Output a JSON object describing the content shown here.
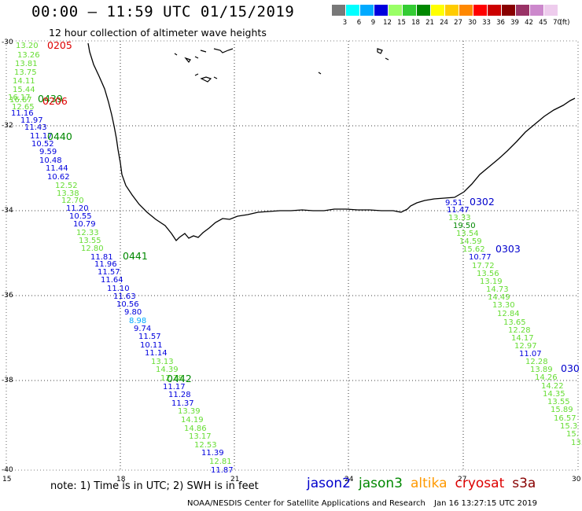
{
  "header": {
    "title": "00:00 – 11:59 UTC 01/15/2019",
    "subtitle": "12 hour collection of altimeter wave heights"
  },
  "color_scale": {
    "unit_label": "(ft)",
    "bins": [
      {
        "label": "3",
        "color": "#787878"
      },
      {
        "label": "6",
        "color": "#00ffff"
      },
      {
        "label": "9",
        "color": "#00aaff"
      },
      {
        "label": "12",
        "color": "#0000dd"
      },
      {
        "label": "15",
        "color": "#99ff66"
      },
      {
        "label": "18",
        "color": "#33cc33"
      },
      {
        "label": "21",
        "color": "#008800"
      },
      {
        "label": "24",
        "color": "#ffff00"
      },
      {
        "label": "27",
        "color": "#ffcc00"
      },
      {
        "label": "30",
        "color": "#ff8800"
      },
      {
        "label": "33",
        "color": "#ff0000"
      },
      {
        "label": "36",
        "color": "#cc0000"
      },
      {
        "label": "39",
        "color": "#880000"
      },
      {
        "label": "42",
        "color": "#993366"
      },
      {
        "label": "45",
        "color": "#cc88cc"
      },
      {
        "label": "70",
        "color": "#eecced"
      }
    ]
  },
  "axes": {
    "lat_labels": [
      "-30",
      "-32",
      "-34",
      "-36",
      "-38",
      "-40"
    ],
    "lon_labels": [
      "15",
      "18",
      "21",
      "24",
      "27",
      "30"
    ]
  },
  "tracks": {
    "A": [
      "13.20",
      "13.26",
      "13.81",
      "13.75",
      "14.11",
      "15.44",
      "16.17",
      "16.67",
      "12.65",
      "11.16",
      "11.97",
      "11.43",
      "11.17",
      "10.52",
      "9.59",
      "10.48",
      "11.44",
      "10.62",
      "12.52",
      "13.38",
      "12.70",
      "11.20",
      "10.55",
      "10.79",
      "12.33",
      "13.55",
      "12.80",
      "11.81",
      "11.96",
      "11.57",
      "11.64",
      "11.10",
      "11.63",
      "10.56",
      "9.80",
      "8.98",
      "9.74",
      "11.57",
      "10.11",
      "11.14",
      "13.13",
      "14.39",
      "12.78",
      "11.17",
      "11.28",
      "11.37",
      "13.39",
      "14.19",
      "14.86",
      "13.17",
      "12.53",
      "11.39",
      "12.81",
      "11.87"
    ],
    "B": [
      "9.51",
      "11.47",
      "13.33",
      "19.50",
      "13.54",
      "14.59",
      "15.62",
      "10.77",
      "17.72",
      "13.56",
      "13.19",
      "14.73",
      "14.49",
      "13.30",
      "12.84",
      "13.65",
      "12.28",
      "14.17",
      "12.97",
      "11.07",
      "12.28",
      "13.89",
      "14.26",
      "14.22",
      "14.35",
      "13.55",
      "15.89",
      "16.57",
      "15.3",
      "15.",
      "13."
    ]
  },
  "pass_labels": [
    "0205",
    "0439",
    "0206",
    "0440",
    "0441",
    "0442",
    "0302",
    "0303",
    "030"
  ],
  "note": "note: 1) Time is in UTC; 2) SWH is in feet",
  "legend": [
    {
      "name": "jason2",
      "color": "#0000cc"
    },
    {
      "name": "jason3",
      "color": "#008800"
    },
    {
      "name": "altika",
      "color": "#ff9900"
    },
    {
      "name": "cryosat",
      "color": "#dd0000"
    },
    {
      "name": "s3a",
      "color": "#880000"
    }
  ],
  "credit": "NOAA/NESDIS Center for Satellite Applications and Research",
  "stamp": "Jan 16 13:27:15 UTC 2019"
}
